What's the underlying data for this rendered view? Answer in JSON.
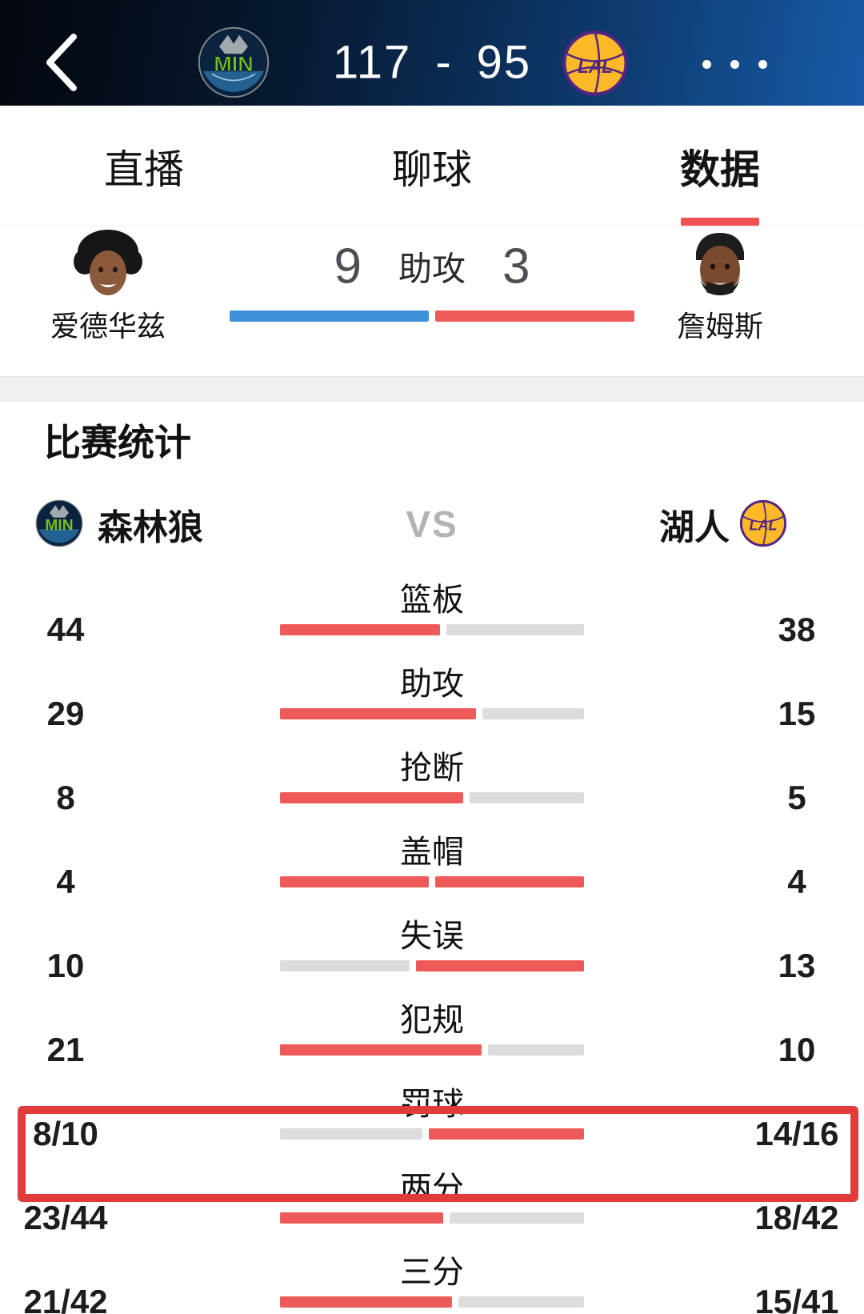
{
  "header": {
    "score_home": "117",
    "score_separator": "-",
    "score_away": "95",
    "home_abbr": "MIN",
    "away_abbr": "LAL",
    "back_icon": "chevron-left",
    "more_icon": "ellipsis"
  },
  "tabs": [
    {
      "label": "直播",
      "active": false
    },
    {
      "label": "聊球",
      "active": false
    },
    {
      "label": "数据",
      "active": true
    }
  ],
  "player_compare": {
    "left_player": {
      "name": "爱德华兹",
      "value": "9"
    },
    "stat_label": "助攻",
    "right_player": {
      "name": "詹姆斯",
      "value": "3"
    }
  },
  "stats": {
    "title": "比赛统计",
    "home_team": {
      "name": "森林狼",
      "abbr": "MIN"
    },
    "away_team": {
      "name": "湖人",
      "abbr": "LAL"
    },
    "vs_label": "VS",
    "rows": [
      {
        "label": "篮板",
        "home": "44",
        "away": "38",
        "home_share": 0.537,
        "red": "home",
        "highlight": false
      },
      {
        "label": "助攻",
        "home": "29",
        "away": "15",
        "home_share": 0.659,
        "red": "home",
        "highlight": false
      },
      {
        "label": "抢断",
        "home": "8",
        "away": "5",
        "home_share": 0.615,
        "red": "home",
        "highlight": false
      },
      {
        "label": "盖帽",
        "home": "4",
        "away": "4",
        "home_share": 0.5,
        "red": "both",
        "highlight": false
      },
      {
        "label": "失误",
        "home": "10",
        "away": "13",
        "home_share": 0.435,
        "red": "away",
        "highlight": false
      },
      {
        "label": "犯规",
        "home": "21",
        "away": "10",
        "home_share": 0.677,
        "red": "home",
        "highlight": false
      },
      {
        "label": "罚球",
        "home": "8/10",
        "away": "14/16",
        "home_share": 0.478,
        "red": "away",
        "highlight": true
      },
      {
        "label": "两分",
        "home": "23/44",
        "away": "18/42",
        "home_share": 0.549,
        "red": "home",
        "highlight": false
      },
      {
        "label": "三分",
        "home": "21/42",
        "away": "15/41",
        "home_share": 0.577,
        "red": "home",
        "highlight": false
      }
    ]
  },
  "colors": {
    "bar_red": "#ee5a5a",
    "bar_gray": "#dcdcdc",
    "bar_blue": "#3f92d9",
    "tab_indicator": "#f15353",
    "highlight_border": "#e23b3b",
    "min_navy": "#0c2340",
    "min_green": "#78be20",
    "min_globe": "#236192",
    "lal_gold": "#fdb927",
    "lal_purple": "#552583"
  }
}
